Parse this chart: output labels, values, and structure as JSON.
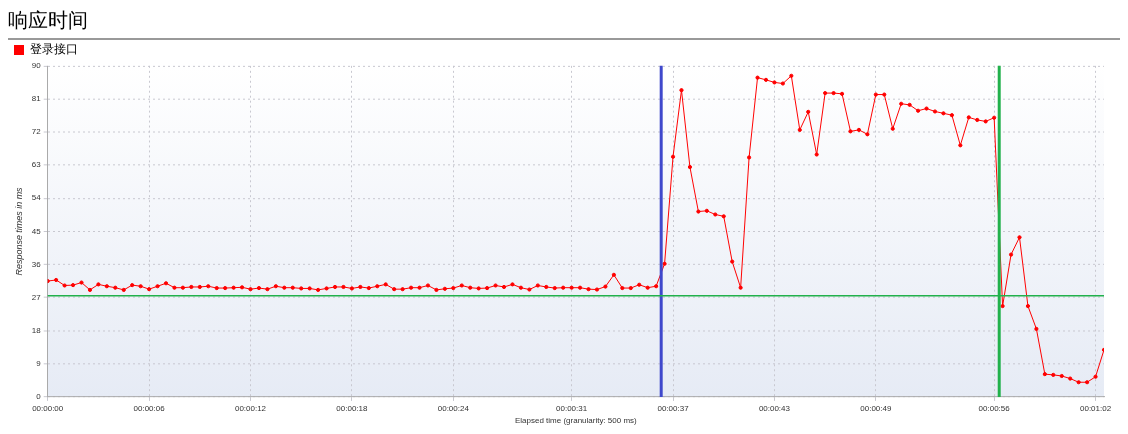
{
  "chart_data": {
    "type": "line",
    "title": "响应时间",
    "xlabel": "Elapsed time (granularity: 500 ms)",
    "ylabel": "Response times in ms",
    "x": [
      0,
      0.5,
      1,
      1.5,
      2,
      2.5,
      3,
      3.5,
      4,
      4.5,
      5,
      5.5,
      6,
      6.5,
      7,
      7.5,
      8,
      8.5,
      9,
      9.5,
      10,
      10.5,
      11,
      11.5,
      12,
      12.5,
      13,
      13.5,
      14,
      14.5,
      15,
      15.5,
      16,
      16.5,
      17,
      17.5,
      18,
      18.5,
      19,
      19.5,
      20,
      20.5,
      21,
      21.5,
      22,
      22.5,
      23,
      23.5,
      24,
      24.5,
      25,
      25.5,
      26,
      26.5,
      27,
      27.5,
      28,
      28.5,
      29,
      29.5,
      30,
      30.5,
      31,
      31.5,
      32,
      32.5,
      33,
      33.5,
      34,
      34.5,
      35,
      35.5,
      36,
      36.5,
      37,
      37.5,
      38,
      38.5,
      39,
      39.5,
      40,
      40.5,
      41,
      41.5,
      42,
      42.5,
      43,
      43.5,
      44,
      44.5,
      45,
      45.5,
      46,
      46.5,
      47,
      47.5,
      48,
      48.5,
      49,
      49.5,
      50,
      50.5,
      51,
      51.5,
      52,
      52.5,
      53,
      53.5,
      54,
      54.5,
      55,
      55.5,
      56,
      56.5,
      57,
      57.5,
      58,
      58.5,
      59,
      59.5,
      60,
      60.5,
      61,
      61.5,
      62,
      62.5
    ],
    "series": [
      {
        "name": "登录接口",
        "color": "#ff0000",
        "values": [
          31.5,
          31.8,
          30.3,
          30.4,
          31.1,
          29.1,
          30.6,
          30.1,
          29.7,
          29.1,
          30.4,
          30.1,
          29.3,
          30.1,
          30.9,
          29.7,
          29.7,
          29.9,
          29.9,
          30.1,
          29.6,
          29.6,
          29.7,
          29.8,
          29.3,
          29.6,
          29.3,
          30.1,
          29.7,
          29.7,
          29.5,
          29.5,
          29.1,
          29.5,
          29.9,
          29.9,
          29.5,
          29.9,
          29.6,
          30.1,
          30.6,
          29.3,
          29.3,
          29.7,
          29.7,
          30.3,
          29.1,
          29.4,
          29.6,
          30.3,
          29.7,
          29.5,
          29.6,
          30.3,
          29.9,
          30.6,
          29.7,
          29.2,
          30.3,
          29.9,
          29.6,
          29.7,
          29.7,
          29.7,
          29.3,
          29.2,
          30.0,
          33.2,
          29.6,
          29.6,
          30.5,
          29.7,
          30.1,
          36.2,
          65.3,
          83.4,
          62.5,
          50.4,
          50.6,
          49.6,
          49.1,
          36.8,
          29.7,
          65.1,
          86.8,
          86.2,
          85.5,
          85.2,
          87.3,
          72.6,
          77.5,
          65.9,
          82.6,
          82.6,
          82.4,
          72.2,
          72.6,
          71.4,
          82.2,
          82.2,
          72.9,
          79.7,
          79.4,
          77.8,
          78.4,
          77.6,
          77.1,
          76.6,
          68.4,
          76.0,
          75.3,
          74.9,
          75.9,
          24.7,
          38.7,
          43.4,
          24.7,
          18.5,
          6.2,
          6.0,
          5.7,
          5.0,
          4.0,
          4.0,
          5.5,
          12.8
        ]
      }
    ],
    "xlim": [
      0,
      62.5
    ],
    "xticks": [
      {
        "value": 0,
        "label": "00:00:00"
      },
      {
        "value": 6,
        "label": "00:00:06"
      },
      {
        "value": 12,
        "label": "00:00:12"
      },
      {
        "value": 18,
        "label": "00:00:18"
      },
      {
        "value": 24,
        "label": "00:00:24"
      },
      {
        "value": 31,
        "label": "00:00:31"
      },
      {
        "value": 37,
        "label": "00:00:37"
      },
      {
        "value": 43,
        "label": "00:00:43"
      },
      {
        "value": 49,
        "label": "00:00:49"
      },
      {
        "value": 56,
        "label": "00:00:56"
      },
      {
        "value": 62,
        "label": "00:01:02"
      }
    ],
    "ylim": [
      0,
      90
    ],
    "yticks": [
      0,
      9,
      18,
      27,
      36,
      45,
      54,
      63,
      72,
      81,
      90
    ],
    "ref_lines": [
      {
        "axis": "x",
        "value": 36.3,
        "color": "#3f48cc"
      },
      {
        "axis": "x",
        "value": 56.3,
        "color": "#22b14c"
      },
      {
        "axis": "y",
        "value": 27.5,
        "color": "#22b14c"
      }
    ],
    "grid": true,
    "legend": "top left",
    "marker": "circle",
    "line_style": "solid"
  }
}
